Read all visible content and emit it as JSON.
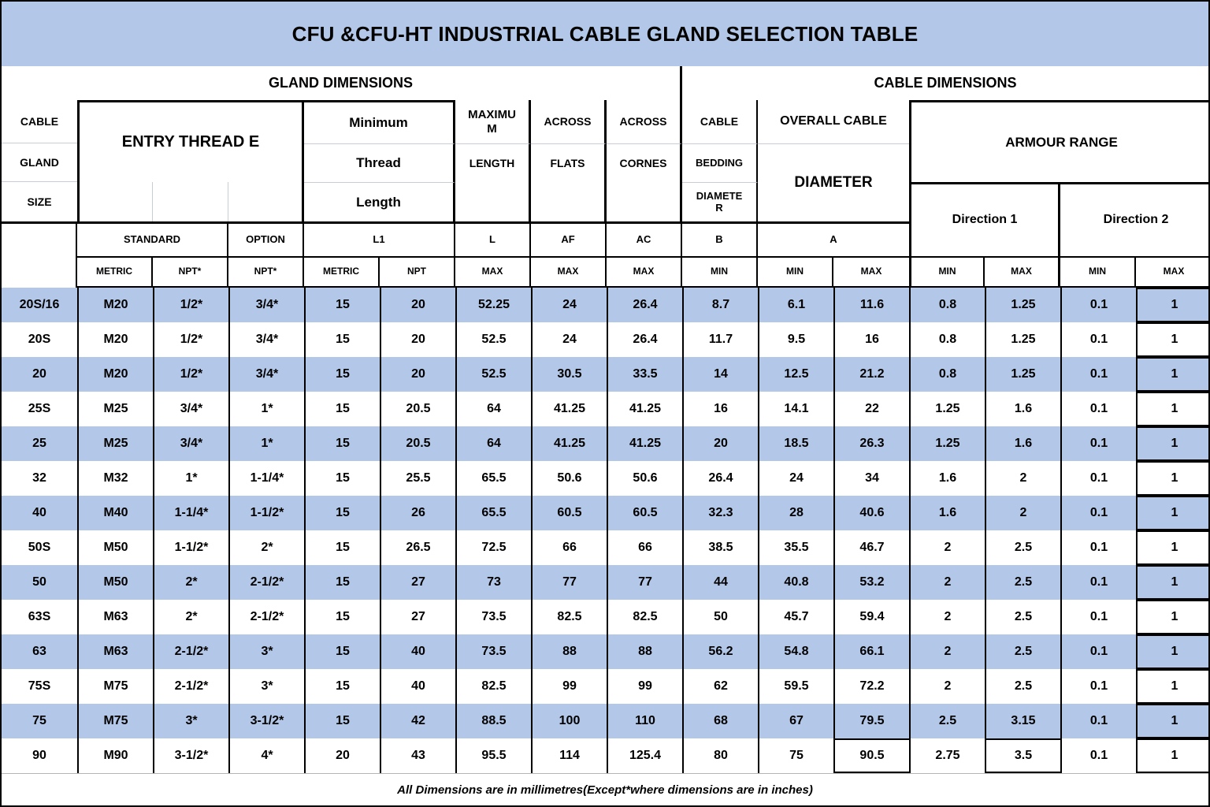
{
  "title": "CFU &CFU-HT INDUSTRIAL CABLE GLAND SELECTION TABLE",
  "sections": {
    "left": "GLAND DIMENSIONS",
    "right": "CABLE DIMENSIONS"
  },
  "header": {
    "cable": "CABLE",
    "gland": "GLAND",
    "size": "SIZE",
    "entry_thread": "ENTRY THREAD E",
    "minimum": "Minimum",
    "thread": "Thread",
    "length_lower": "Length",
    "maximum": "MAXIMUM",
    "length_upper": "LENGTH",
    "across_1": "ACROSS",
    "flats": "FLATS",
    "across_2": "ACROSS",
    "cornes": "CORNES",
    "cable_2": "CABLE",
    "bedding": "BEDDING",
    "diameter_b": "DIAMETER",
    "overall_cable": "OVERALL CABLE",
    "diameter_a": "DIAMETER",
    "armour_range": "ARMOUR RANGE",
    "direction_1": "Direction 1",
    "direction_2": "Direction 2",
    "standard": "STANDARD",
    "option": "OPTION",
    "l1": "L1",
    "code_l": "L",
    "code_af": "AF",
    "code_ac": "AC",
    "code_b": "B",
    "code_a": "A",
    "sub_labels": [
      "METRIC",
      "NPT*",
      "NPT*",
      "METRIC",
      "NPT",
      "MAX",
      "MAX",
      "MAX",
      "MIN",
      "MIN",
      "MAX",
      "MIN",
      "MAX",
      "MIN",
      "MAX"
    ]
  },
  "rows": [
    [
      "20S/16",
      "M20",
      "1/2*",
      "3/4*",
      "15",
      "20",
      "52.25",
      "24",
      "26.4",
      "8.7",
      "6.1",
      "11.6",
      "0.8",
      "1.25",
      "0.1",
      "1"
    ],
    [
      "20S",
      "M20",
      "1/2*",
      "3/4*",
      "15",
      "20",
      "52.5",
      "24",
      "26.4",
      "11.7",
      "9.5",
      "16",
      "0.8",
      "1.25",
      "0.1",
      "1"
    ],
    [
      "20",
      "M20",
      "1/2*",
      "3/4*",
      "15",
      "20",
      "52.5",
      "30.5",
      "33.5",
      "14",
      "12.5",
      "21.2",
      "0.8",
      "1.25",
      "0.1",
      "1"
    ],
    [
      "25S",
      "M25",
      "3/4*",
      "1*",
      "15",
      "20.5",
      "64",
      "41.25",
      "41.25",
      "16",
      "14.1",
      "22",
      "1.25",
      "1.6",
      "0.1",
      "1"
    ],
    [
      "25",
      "M25",
      "3/4*",
      "1*",
      "15",
      "20.5",
      "64",
      "41.25",
      "41.25",
      "20",
      "18.5",
      "26.3",
      "1.25",
      "1.6",
      "0.1",
      "1"
    ],
    [
      "32",
      "M32",
      "1*",
      "1-1/4*",
      "15",
      "25.5",
      "65.5",
      "50.6",
      "50.6",
      "26.4",
      "24",
      "34",
      "1.6",
      "2",
      "0.1",
      "1"
    ],
    [
      "40",
      "M40",
      "1-1/4*",
      "1-1/2*",
      "15",
      "26",
      "65.5",
      "60.5",
      "60.5",
      "32.3",
      "28",
      "40.6",
      "1.6",
      "2",
      "0.1",
      "1"
    ],
    [
      "50S",
      "M50",
      "1-1/2*",
      "2*",
      "15",
      "26.5",
      "72.5",
      "66",
      "66",
      "38.5",
      "35.5",
      "46.7",
      "2",
      "2.5",
      "0.1",
      "1"
    ],
    [
      "50",
      "M50",
      "2*",
      "2-1/2*",
      "15",
      "27",
      "73",
      "77",
      "77",
      "44",
      "40.8",
      "53.2",
      "2",
      "2.5",
      "0.1",
      "1"
    ],
    [
      "63S",
      "M63",
      "2*",
      "2-1/2*",
      "15",
      "27",
      "73.5",
      "82.5",
      "82.5",
      "50",
      "45.7",
      "59.4",
      "2",
      "2.5",
      "0.1",
      "1"
    ],
    [
      "63",
      "M63",
      "2-1/2*",
      "3*",
      "15",
      "40",
      "73.5",
      "88",
      "88",
      "56.2",
      "54.8",
      "66.1",
      "2",
      "2.5",
      "0.1",
      "1"
    ],
    [
      "75S",
      "M75",
      "2-1/2*",
      "3*",
      "15",
      "40",
      "82.5",
      "99",
      "99",
      "62",
      "59.5",
      "72.2",
      "2",
      "2.5",
      "0.1",
      "1"
    ],
    [
      "75",
      "M75",
      "3*",
      "3-1/2*",
      "15",
      "42",
      "88.5",
      "100",
      "110",
      "68",
      "67",
      "79.5",
      "2.5",
      "3.15",
      "0.1",
      "1"
    ],
    [
      "90",
      "M90",
      "3-1/2*",
      "4*",
      "20",
      "43",
      "95.5",
      "114",
      "125.4",
      "80",
      "75",
      "90.5",
      "2.75",
      "3.5",
      "0.1",
      "1"
    ]
  ],
  "footer": "All Dimensions are in millimetres(Except*where dimensions are in inches)",
  "colors": {
    "band_blue": "#b3c7e8",
    "row_alt_blue": "#b3c7e8",
    "border_black": "#000000"
  }
}
